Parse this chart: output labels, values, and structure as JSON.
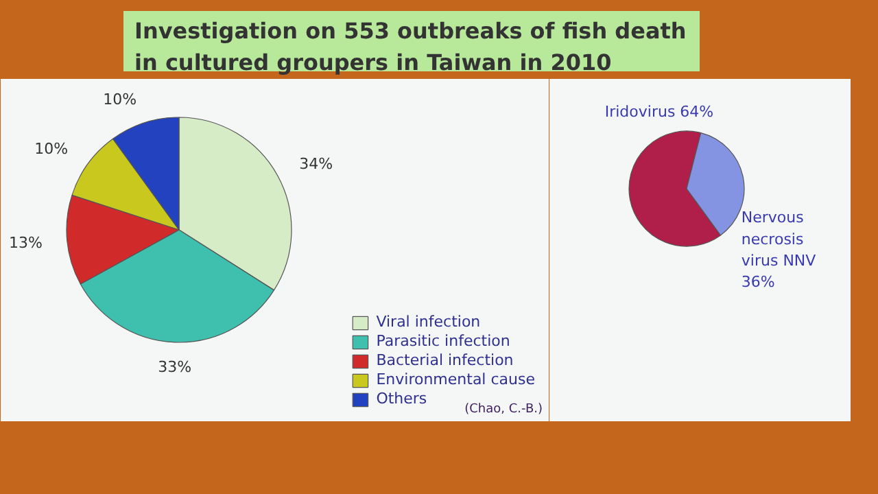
{
  "chart_data": [
    {
      "type": "pie",
      "title": "Investigation on 553 outbreaks of fish death in cultured groupers in Taiwan in 2010",
      "categories": [
        "Viral infection",
        "Parasitic infection",
        "Bacterial infection",
        "Environmental cause",
        "Others"
      ],
      "values": [
        34,
        33,
        13,
        10,
        10
      ],
      "value_labels": [
        "34%",
        "33%",
        "13%",
        "10%",
        "10%"
      ],
      "colors": [
        "#d6ecc6",
        "#3fbfae",
        "#d02a2a",
        "#c8c81e",
        "#2242c0"
      ],
      "legend": "right",
      "annotations": [
        "(Chao, C.-B.)"
      ]
    },
    {
      "type": "pie",
      "categories": [
        "Iridovirus",
        "Nervous necrosis virus NNV"
      ],
      "values": [
        64,
        36
      ],
      "value_labels": [
        "64%",
        "36%"
      ],
      "colors": [
        "#b01e4a",
        "#8494e2"
      ],
      "legend": false
    }
  ]
}
